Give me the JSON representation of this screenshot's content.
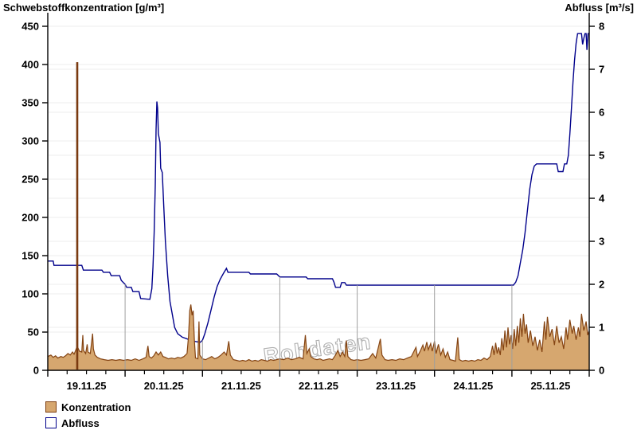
{
  "watermark": "Rohdaten",
  "legend": [
    {
      "label": "Konzentration",
      "fill": "#d6a76f",
      "stroke": "#7e3e10"
    },
    {
      "label": "Abfluss",
      "fill": "#ffffff",
      "stroke": "#00008b"
    }
  ],
  "chart_data": {
    "type": "line",
    "title": "",
    "grid": {
      "h_color": "#ededed",
      "day_line_color": "#9e9e9e",
      "axis_color": "#000000"
    },
    "watermark_color": "#b0b0b0",
    "x_axis": {
      "tick_labels": [
        "19.11.25",
        "20.11.25",
        "21.11.25",
        "22.11.25",
        "23.11.25",
        "24.11.25",
        "25.11.25"
      ],
      "days_shown": 7,
      "minor_ticks_per_day": 4
    },
    "y_left": {
      "label": "Schwebstoffkonzentration [g/m³]",
      "min": 0,
      "max": 450,
      "ticks": [
        0,
        50,
        100,
        150,
        200,
        250,
        300,
        350,
        400,
        450
      ]
    },
    "y_right": {
      "label": "Abfluss [m³/s]",
      "min": 0,
      "max": 8,
      "ticks": [
        0,
        1,
        2,
        3,
        4,
        5,
        6,
        7,
        8
      ]
    },
    "series": [
      {
        "name": "Konzentration",
        "axis": "left",
        "style": "area",
        "fill": "#d6a76f",
        "stroke": "#844312",
        "spike_stroke": "#7a3a10",
        "points": [
          [
            0.0,
            18
          ],
          [
            0.04,
            20
          ],
          [
            0.07,
            17
          ],
          [
            0.1,
            19
          ],
          [
            0.13,
            16
          ],
          [
            0.17,
            18
          ],
          [
            0.2,
            17
          ],
          [
            0.23,
            19
          ],
          [
            0.26,
            22
          ],
          [
            0.29,
            20
          ],
          [
            0.32,
            24
          ],
          [
            0.34,
            21
          ],
          [
            0.36,
            26
          ],
          [
            0.375,
            30
          ],
          [
            0.381,
            403
          ],
          [
            0.387,
            30
          ],
          [
            0.41,
            25
          ],
          [
            0.44,
            24
          ],
          [
            0.453,
            46
          ],
          [
            0.462,
            26
          ],
          [
            0.49,
            22
          ],
          [
            0.51,
            34
          ],
          [
            0.52,
            24
          ],
          [
            0.55,
            22
          ],
          [
            0.58,
            48
          ],
          [
            0.59,
            28
          ],
          [
            0.61,
            20
          ],
          [
            0.64,
            17
          ],
          [
            0.68,
            15
          ],
          [
            0.73,
            14
          ],
          [
            0.78,
            13
          ],
          [
            0.83,
            14
          ],
          [
            0.88,
            13
          ],
          [
            0.93,
            14
          ],
          [
            0.98,
            13
          ],
          [
            1.03,
            14
          ],
          [
            1.08,
            13
          ],
          [
            1.13,
            15
          ],
          [
            1.18,
            13
          ],
          [
            1.23,
            15
          ],
          [
            1.27,
            17
          ],
          [
            1.295,
            32
          ],
          [
            1.31,
            18
          ],
          [
            1.34,
            16
          ],
          [
            1.37,
            19
          ],
          [
            1.4,
            24
          ],
          [
            1.43,
            20
          ],
          [
            1.46,
            24
          ],
          [
            1.49,
            18
          ],
          [
            1.52,
            17
          ],
          [
            1.56,
            15
          ],
          [
            1.6,
            16
          ],
          [
            1.64,
            15
          ],
          [
            1.68,
            17
          ],
          [
            1.72,
            16
          ],
          [
            1.76,
            18
          ],
          [
            1.8,
            22
          ],
          [
            1.82,
            45
          ],
          [
            1.835,
            78
          ],
          [
            1.85,
            86
          ],
          [
            1.865,
            72
          ],
          [
            1.88,
            78
          ],
          [
            1.895,
            40
          ],
          [
            1.91,
            16
          ],
          [
            1.94,
            15
          ],
          [
            1.955,
            64
          ],
          [
            1.965,
            20
          ],
          [
            2.0,
            15
          ],
          [
            2.04,
            14
          ],
          [
            2.08,
            16
          ],
          [
            2.12,
            18
          ],
          [
            2.16,
            15
          ],
          [
            2.2,
            17
          ],
          [
            2.24,
            20
          ],
          [
            2.28,
            24
          ],
          [
            2.31,
            20
          ],
          [
            2.34,
            38
          ],
          [
            2.36,
            20
          ],
          [
            2.4,
            14
          ],
          [
            2.44,
            13
          ],
          [
            2.48,
            12
          ],
          [
            2.52,
            13
          ],
          [
            2.56,
            12
          ],
          [
            2.6,
            14
          ],
          [
            2.64,
            12
          ],
          [
            2.68,
            13
          ],
          [
            2.72,
            12
          ],
          [
            2.76,
            14
          ],
          [
            2.8,
            13
          ],
          [
            2.84,
            12
          ],
          [
            2.88,
            14
          ],
          [
            2.92,
            13
          ],
          [
            2.96,
            14
          ],
          [
            3.0,
            15
          ],
          [
            3.05,
            14
          ],
          [
            3.1,
            16
          ],
          [
            3.15,
            14
          ],
          [
            3.2,
            15
          ],
          [
            3.25,
            17
          ],
          [
            3.3,
            15
          ],
          [
            3.33,
            46
          ],
          [
            3.35,
            22
          ],
          [
            3.38,
            28
          ],
          [
            3.4,
            18
          ],
          [
            3.44,
            15
          ],
          [
            3.48,
            14
          ],
          [
            3.52,
            15
          ],
          [
            3.56,
            13
          ],
          [
            3.6,
            14
          ],
          [
            3.64,
            15
          ],
          [
            3.68,
            14
          ],
          [
            3.72,
            20
          ],
          [
            3.75,
            26
          ],
          [
            3.78,
            18
          ],
          [
            3.81,
            24
          ],
          [
            3.84,
            18
          ],
          [
            3.86,
            39
          ],
          [
            3.88,
            18
          ],
          [
            3.92,
            14
          ],
          [
            3.96,
            13
          ],
          [
            4.0,
            14
          ],
          [
            4.05,
            13
          ],
          [
            4.1,
            14
          ],
          [
            4.15,
            15
          ],
          [
            4.2,
            22
          ],
          [
            4.24,
            16
          ],
          [
            4.3,
            41
          ],
          [
            4.32,
            20
          ],
          [
            4.36,
            14
          ],
          [
            4.4,
            13
          ],
          [
            4.45,
            14
          ],
          [
            4.5,
            13
          ],
          [
            4.55,
            15
          ],
          [
            4.6,
            14
          ],
          [
            4.65,
            16
          ],
          [
            4.7,
            18
          ],
          [
            4.76,
            30
          ],
          [
            4.78,
            18
          ],
          [
            4.82,
            26
          ],
          [
            4.85,
            33
          ],
          [
            4.87,
            25
          ],
          [
            4.9,
            37
          ],
          [
            4.92,
            27
          ],
          [
            4.95,
            35
          ],
          [
            4.97,
            25
          ],
          [
            5.0,
            38
          ],
          [
            5.02,
            22
          ],
          [
            5.05,
            34
          ],
          [
            5.08,
            20
          ],
          [
            5.11,
            28
          ],
          [
            5.14,
            17
          ],
          [
            5.17,
            24
          ],
          [
            5.2,
            14
          ],
          [
            5.24,
            13
          ],
          [
            5.27,
            12
          ],
          [
            5.3,
            43
          ],
          [
            5.32,
            14
          ],
          [
            5.36,
            12
          ],
          [
            5.4,
            13
          ],
          [
            5.44,
            12
          ],
          [
            5.48,
            13
          ],
          [
            5.52,
            12
          ],
          [
            5.56,
            14
          ],
          [
            5.6,
            13
          ],
          [
            5.64,
            16
          ],
          [
            5.68,
            14
          ],
          [
            5.72,
            18
          ],
          [
            5.75,
            32
          ],
          [
            5.77,
            20
          ],
          [
            5.79,
            36
          ],
          [
            5.81,
            22
          ],
          [
            5.83,
            30
          ],
          [
            5.85,
            20
          ],
          [
            5.87,
            42
          ],
          [
            5.89,
            26
          ],
          [
            5.91,
            52
          ],
          [
            5.93,
            30
          ],
          [
            5.95,
            56
          ],
          [
            5.97,
            34
          ],
          [
            5.99,
            46
          ],
          [
            6.01,
            28
          ],
          [
            6.03,
            54
          ],
          [
            6.05,
            32
          ],
          [
            6.07,
            58
          ],
          [
            6.09,
            36
          ],
          [
            6.11,
            68
          ],
          [
            6.13,
            44
          ],
          [
            6.15,
            74
          ],
          [
            6.17,
            48
          ],
          [
            6.19,
            60
          ],
          [
            6.21,
            36
          ],
          [
            6.24,
            52
          ],
          [
            6.27,
            32
          ],
          [
            6.3,
            44
          ],
          [
            6.33,
            26
          ],
          [
            6.36,
            40
          ],
          [
            6.39,
            24
          ],
          [
            6.42,
            64
          ],
          [
            6.44,
            40
          ],
          [
            6.46,
            70
          ],
          [
            6.49,
            44
          ],
          [
            6.52,
            54
          ],
          [
            6.55,
            33
          ],
          [
            6.58,
            58
          ],
          [
            6.61,
            36
          ],
          [
            6.64,
            44
          ],
          [
            6.67,
            28
          ],
          [
            6.7,
            56
          ],
          [
            6.72,
            40
          ],
          [
            6.75,
            66
          ],
          [
            6.78,
            48
          ],
          [
            6.8,
            58
          ],
          [
            6.83,
            40
          ],
          [
            6.86,
            56
          ],
          [
            6.88,
            44
          ],
          [
            6.9,
            74
          ],
          [
            6.93,
            52
          ],
          [
            6.96,
            64
          ],
          [
            6.98,
            46
          ],
          [
            7.0,
            52
          ]
        ]
      },
      {
        "name": "Abfluss",
        "axis": "right",
        "style": "line",
        "fill": "none",
        "stroke": "#00008b",
        "points": [
          [
            0.0,
            2.54
          ],
          [
            0.07,
            2.54
          ],
          [
            0.08,
            2.44
          ],
          [
            0.44,
            2.44
          ],
          [
            0.46,
            2.33
          ],
          [
            0.7,
            2.33
          ],
          [
            0.72,
            2.28
          ],
          [
            0.8,
            2.28
          ],
          [
            0.82,
            2.2
          ],
          [
            0.93,
            2.2
          ],
          [
            0.95,
            2.09
          ],
          [
            1.0,
            2.0
          ],
          [
            1.02,
            1.93
          ],
          [
            1.08,
            1.93
          ],
          [
            1.1,
            1.83
          ],
          [
            1.18,
            1.83
          ],
          [
            1.2,
            1.67
          ],
          [
            1.32,
            1.65
          ],
          [
            1.345,
            1.9
          ],
          [
            1.36,
            2.4
          ],
          [
            1.375,
            3.2
          ],
          [
            1.39,
            4.3
          ],
          [
            1.4,
            5.6
          ],
          [
            1.41,
            6.25
          ],
          [
            1.42,
            6.1
          ],
          [
            1.43,
            5.5
          ],
          [
            1.45,
            5.3
          ],
          [
            1.46,
            4.7
          ],
          [
            1.48,
            4.6
          ],
          [
            1.5,
            3.8
          ],
          [
            1.52,
            3.0
          ],
          [
            1.55,
            2.2
          ],
          [
            1.58,
            1.6
          ],
          [
            1.61,
            1.3
          ],
          [
            1.64,
            1.0
          ],
          [
            1.68,
            0.85
          ],
          [
            1.74,
            0.77
          ],
          [
            1.88,
            0.68
          ],
          [
            1.97,
            0.65
          ],
          [
            2.0,
            0.7
          ],
          [
            2.03,
            0.85
          ],
          [
            2.07,
            1.1
          ],
          [
            2.11,
            1.4
          ],
          [
            2.15,
            1.7
          ],
          [
            2.19,
            1.95
          ],
          [
            2.23,
            2.12
          ],
          [
            2.27,
            2.25
          ],
          [
            2.31,
            2.37
          ],
          [
            2.33,
            2.28
          ],
          [
            2.6,
            2.28
          ],
          [
            2.62,
            2.24
          ],
          [
            2.96,
            2.24
          ],
          [
            3.0,
            2.17
          ],
          [
            3.34,
            2.17
          ],
          [
            3.36,
            2.13
          ],
          [
            3.68,
            2.13
          ],
          [
            3.7,
            2.05
          ],
          [
            3.72,
            1.93
          ],
          [
            3.78,
            1.93
          ],
          [
            3.8,
            2.04
          ],
          [
            3.84,
            2.04
          ],
          [
            3.86,
            1.98
          ],
          [
            6.02,
            1.98
          ],
          [
            6.05,
            2.05
          ],
          [
            6.08,
            2.2
          ],
          [
            6.11,
            2.5
          ],
          [
            6.14,
            2.8
          ],
          [
            6.17,
            3.2
          ],
          [
            6.2,
            3.7
          ],
          [
            6.23,
            4.2
          ],
          [
            6.26,
            4.55
          ],
          [
            6.29,
            4.75
          ],
          [
            6.32,
            4.8
          ],
          [
            6.58,
            4.8
          ],
          [
            6.6,
            4.62
          ],
          [
            6.66,
            4.62
          ],
          [
            6.68,
            4.8
          ],
          [
            6.71,
            4.8
          ],
          [
            6.73,
            5.0
          ],
          [
            6.75,
            5.5
          ],
          [
            6.77,
            6.1
          ],
          [
            6.79,
            6.7
          ],
          [
            6.81,
            7.2
          ],
          [
            6.83,
            7.6
          ],
          [
            6.85,
            7.83
          ],
          [
            6.9,
            7.83
          ],
          [
            6.915,
            7.58
          ],
          [
            6.93,
            7.72
          ],
          [
            6.945,
            7.83
          ],
          [
            6.96,
            7.83
          ],
          [
            6.97,
            7.45
          ],
          [
            6.985,
            7.83
          ],
          [
            7.0,
            7.83
          ]
        ]
      }
    ]
  }
}
